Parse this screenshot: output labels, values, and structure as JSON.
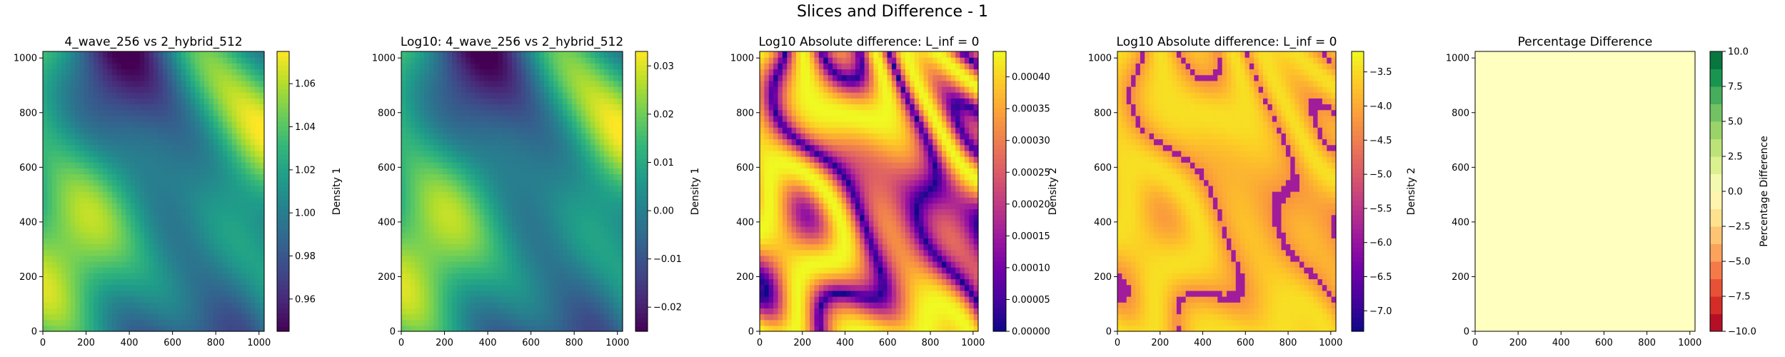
{
  "figure": {
    "title": "Slices and Difference - 1"
  },
  "chart_data": [
    {
      "type": "heatmap",
      "title": "4_wave_256 vs 2_hybrid_512",
      "xlim": [
        0,
        1024
      ],
      "ylim": [
        0,
        1024
      ],
      "xticks": [
        "0",
        "200",
        "400",
        "600",
        "800",
        "1000"
      ],
      "yticks": [
        "0",
        "200",
        "400",
        "600",
        "800",
        "1000"
      ],
      "colormap": "viridis",
      "colorbar": {
        "label": "Density 1",
        "range": [
          0.945,
          1.075
        ],
        "ticks": [
          "0.96",
          "0.98",
          "1.00",
          "1.02",
          "1.04",
          "1.06"
        ],
        "tick_values": [
          0.96,
          0.98,
          1.0,
          1.02,
          1.04,
          1.06
        ]
      },
      "pattern": "density"
    },
    {
      "type": "heatmap",
      "title": "Log10: 4_wave_256 vs 2_hybrid_512",
      "xlim": [
        0,
        1024
      ],
      "ylim": [
        0,
        1024
      ],
      "xticks": [
        "0",
        "200",
        "400",
        "600",
        "800",
        "1000"
      ],
      "yticks": [
        "0",
        "200",
        "400",
        "600",
        "800",
        "1000"
      ],
      "colormap": "viridis",
      "colorbar": {
        "label": "Density 1",
        "range": [
          -0.025,
          0.033
        ],
        "ticks": [
          "−0.02",
          "−0.01",
          "0.00",
          "0.01",
          "0.02",
          "0.03"
        ],
        "tick_values": [
          -0.02,
          -0.01,
          0.0,
          0.01,
          0.02,
          0.03
        ]
      },
      "pattern": "density"
    },
    {
      "type": "heatmap",
      "title": "Log10 Absolute difference: L_inf = 0",
      "xlim": [
        0,
        1024
      ],
      "ylim": [
        0,
        1024
      ],
      "xticks": [
        "0",
        "200",
        "400",
        "600",
        "800",
        "1000"
      ],
      "yticks": [
        "0",
        "200",
        "400",
        "600",
        "800",
        "1000"
      ],
      "colormap": "plasma",
      "colorbar": {
        "label": "Density 2",
        "range": [
          0,
          0.00044
        ],
        "ticks": [
          "0.00000",
          "0.00005",
          "0.00010",
          "0.00015",
          "0.00020",
          "0.00025",
          "0.00030",
          "0.00035",
          "0.00040"
        ],
        "tick_values": [
          0,
          5e-05,
          0.0001,
          0.00015,
          0.0002,
          0.00025,
          0.0003,
          0.00035,
          0.0004
        ]
      },
      "pattern": "absdiff"
    },
    {
      "type": "heatmap",
      "title": "Log10 Absolute difference: L_inf = 0",
      "xlim": [
        0,
        1024
      ],
      "ylim": [
        0,
        1024
      ],
      "xticks": [
        "0",
        "200",
        "400",
        "600",
        "800",
        "1000"
      ],
      "yticks": [
        "0",
        "200",
        "400",
        "600",
        "800",
        "1000"
      ],
      "colormap": "plasma",
      "colorbar": {
        "label": "Density 2",
        "range": [
          -7.3,
          -3.2
        ],
        "ticks": [
          "−3.5",
          "−4.0",
          "−4.5",
          "−5.0",
          "−5.5",
          "−6.0",
          "−6.5",
          "−7.0"
        ],
        "tick_values": [
          -3.5,
          -4.0,
          -4.5,
          -5.0,
          -5.5,
          -6.0,
          -6.5,
          -7.0
        ]
      },
      "pattern": "logdiff"
    },
    {
      "type": "heatmap",
      "title": "Percentage Difference",
      "xlim": [
        0,
        1024
      ],
      "ylim": [
        0,
        1024
      ],
      "xticks": [
        "0",
        "200",
        "400",
        "600",
        "800",
        "1000"
      ],
      "yticks": [
        "0",
        "200",
        "400",
        "600",
        "800",
        "1000"
      ],
      "colormap": "RdYlGn",
      "fill_value": 0,
      "colorbar": {
        "label": "Percentage Difference",
        "range": [
          -10,
          10
        ],
        "ticks": [
          "10.0",
          "7.5",
          "5.0",
          "2.5",
          "0.0",
          "−2.5",
          "−5.0",
          "−7.5",
          "−10.0"
        ],
        "tick_values": [
          10,
          7.5,
          5,
          2.5,
          0,
          -2.5,
          -5,
          -7.5,
          -10
        ],
        "levels": 16
      },
      "pattern": "uniform"
    }
  ]
}
